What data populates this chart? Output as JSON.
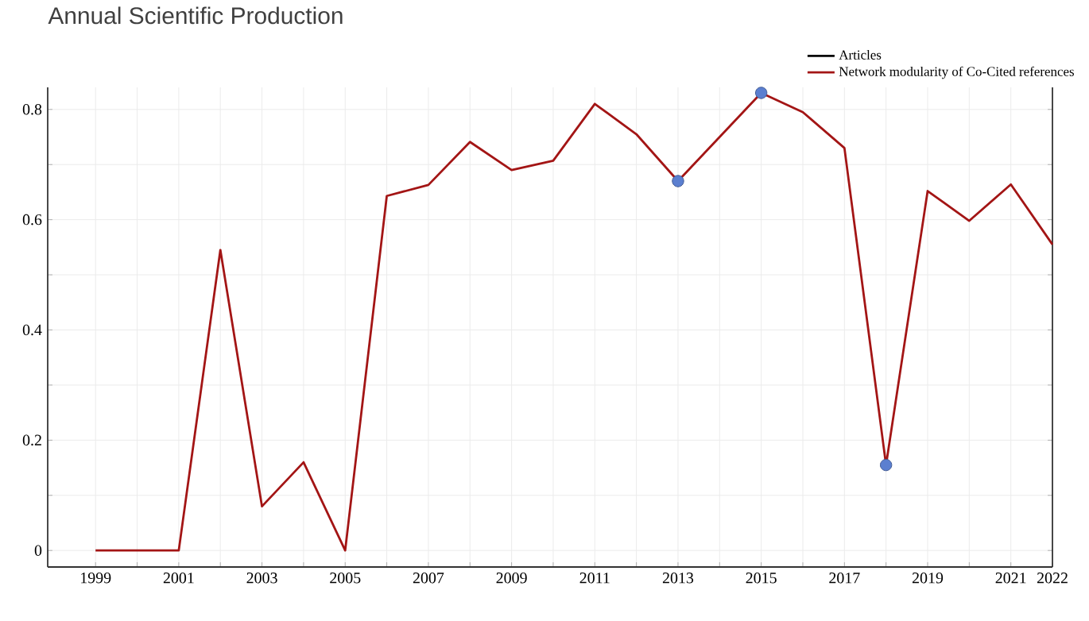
{
  "chart_data": {
    "type": "line",
    "title": "Annual Scientific Production",
    "xlim": [
      1997.85,
      2022
    ],
    "ylim": [
      -0.03,
      0.84
    ],
    "xticks": [
      1999,
      {
        "value": 2000,
        "label": null
      },
      2001,
      {
        "value": 2002,
        "label": null
      },
      2003,
      {
        "value": 2004,
        "label": null
      },
      2005,
      {
        "value": 2006,
        "label": null
      },
      2007,
      {
        "value": 2008,
        "label": null
      },
      2009,
      {
        "value": 2010,
        "label": null
      },
      2011,
      {
        "value": 2012,
        "label": null
      },
      2013,
      {
        "value": 2014,
        "label": null
      },
      2015,
      {
        "value": 2016,
        "label": null
      },
      2017,
      {
        "value": 2018,
        "label": null
      },
      2019,
      {
        "value": 2020,
        "label": null
      },
      2021,
      2022
    ],
    "yticks": [
      0,
      {
        "value": 0.1,
        "label": null
      },
      0.2,
      {
        "value": 0.3,
        "label": null
      },
      0.4,
      {
        "value": 0.5,
        "label": null
      },
      0.6,
      {
        "value": 0.7,
        "label": null
      },
      0.8
    ],
    "grid": true,
    "legend": "top right",
    "x": [
      1999,
      2000,
      2001,
      2002,
      2003,
      2004,
      2005,
      2006,
      2007,
      2008,
      2009,
      2010,
      2011,
      2012,
      2013,
      2014,
      2015,
      2016,
      2017,
      2018,
      2019,
      2020,
      2021,
      2022
    ],
    "series": [
      {
        "name": "Articles",
        "color": "#000000",
        "values": [
          null,
          null,
          null,
          null,
          null,
          null,
          null,
          null,
          null,
          null,
          null,
          null,
          null,
          null,
          null,
          null,
          null,
          null,
          null,
          null,
          null,
          null,
          null,
          null
        ]
      },
      {
        "name": "Network modularity of Co-Cited references",
        "color": "#a31515",
        "values": [
          0,
          0,
          0,
          0.545,
          0.08,
          0.16,
          0,
          0.643,
          0.663,
          0.741,
          0.69,
          0.707,
          0.81,
          0.755,
          0.67,
          0.75,
          0.83,
          0.795,
          0.73,
          0.155,
          0.652,
          0.598,
          0.664,
          0.555
        ]
      },
      {
        "type": "scatter",
        "color": "#5b7fd0",
        "x": [
          2013,
          2015,
          2018
        ],
        "values": [
          0.67,
          0.83,
          0.155
        ]
      }
    ]
  }
}
